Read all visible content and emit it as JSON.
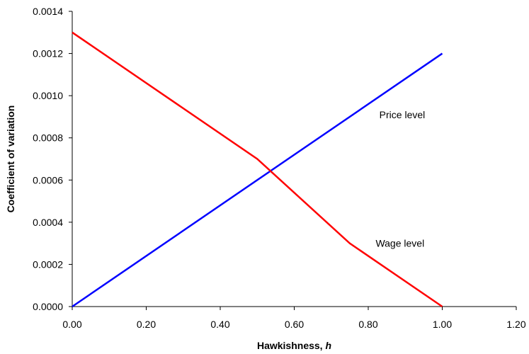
{
  "chart_data": {
    "type": "line",
    "xlabel": "Hawkishness, ",
    "xlabel_var": "h",
    "ylabel": "Coefficient of variation",
    "xlim": [
      0,
      1.2
    ],
    "ylim": [
      0,
      0.0014
    ],
    "x_ticks": [
      "0.00",
      "0.20",
      "0.40",
      "0.60",
      "0.80",
      "1.00",
      "1.20"
    ],
    "y_ticks": [
      "0.0000",
      "0.0002",
      "0.0004",
      "0.0006",
      "0.0008",
      "0.0010",
      "0.0012",
      "0.0014"
    ],
    "grid": false,
    "legend": "none",
    "series": [
      {
        "name": "Price level",
        "color": "#0000ff",
        "x": [
          0,
          1.0
        ],
        "y": [
          0,
          0.0012
        ]
      },
      {
        "name": "Wage level",
        "color": "#ff0000",
        "x": [
          0,
          0.5,
          0.75,
          1.0
        ],
        "y": [
          0.0013,
          0.0007,
          0.0003,
          0
        ]
      }
    ],
    "annotations": [
      {
        "text": "Price level",
        "x": 0.83,
        "y": 0.00091
      },
      {
        "text": "Wage level",
        "x": 0.82,
        "y": 0.0003
      }
    ]
  }
}
